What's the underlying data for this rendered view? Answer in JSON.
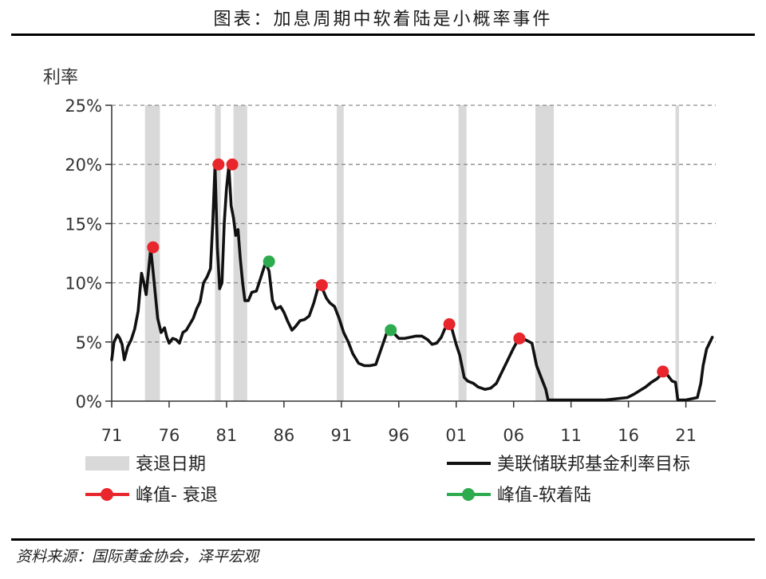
{
  "header": {
    "title": "图表：加息周期中软着陆是小概率事件"
  },
  "footer": {
    "source": "资料来源：国际黄金协会，泽平宏观"
  },
  "colors": {
    "line": "#111111",
    "recession": "#d9d9d9",
    "peak_recession": "#e8262c",
    "peak_soft": "#2eaa4f",
    "grid": "#8c8c8c"
  },
  "chart_data": {
    "type": "line",
    "title": "",
    "ylabel": "利率",
    "xlabel": "",
    "xlim": [
      1971,
      2023.6
    ],
    "ylim": [
      0,
      25
    ],
    "x_ticks": [
      1971,
      1976,
      1981,
      1986,
      1991,
      1996,
      2001,
      2006,
      2011,
      2016,
      2021
    ],
    "x_tick_labels": [
      "71",
      "76",
      "81",
      "86",
      "91",
      "96",
      "01",
      "06",
      "11",
      "16",
      "21"
    ],
    "y_ticks": [
      0,
      5,
      10,
      15,
      20,
      25
    ],
    "y_tick_labels": [
      "0%",
      "5%",
      "10%",
      "15%",
      "20%",
      "25%"
    ],
    "grid": "horizontal dashed",
    "recessions": [
      [
        1973.9,
        1975.2
      ],
      [
        1980.0,
        1980.5
      ],
      [
        1981.6,
        1982.8
      ],
      [
        1990.6,
        1991.2
      ],
      [
        2001.2,
        2001.9
      ],
      [
        2007.9,
        2009.5
      ],
      [
        2020.1,
        2020.4
      ]
    ],
    "series": [
      {
        "name": "美联储联邦基金利率目标",
        "x": [
          1971.0,
          1971.2,
          1971.5,
          1971.7,
          1971.9,
          1972.1,
          1972.4,
          1972.7,
          1973.0,
          1973.3,
          1973.6,
          1973.8,
          1974.0,
          1974.2,
          1974.4,
          1974.6,
          1974.8,
          1975.0,
          1975.3,
          1975.6,
          1975.8,
          1976.0,
          1976.3,
          1976.6,
          1976.9,
          1977.2,
          1977.5,
          1977.8,
          1978.1,
          1978.4,
          1978.7,
          1979.0,
          1979.3,
          1979.6,
          1979.8,
          1980.0,
          1980.2,
          1980.4,
          1980.6,
          1980.8,
          1981.0,
          1981.2,
          1981.4,
          1981.6,
          1981.8,
          1982.0,
          1982.2,
          1982.4,
          1982.6,
          1982.9,
          1983.2,
          1983.6,
          1984.0,
          1984.4,
          1984.7,
          1985.0,
          1985.3,
          1985.7,
          1986.0,
          1986.3,
          1986.7,
          1987.0,
          1987.4,
          1987.8,
          1988.2,
          1988.6,
          1989.0,
          1989.3,
          1989.7,
          1990.0,
          1990.4,
          1990.8,
          1991.2,
          1991.6,
          1992.0,
          1992.5,
          1993.0,
          1993.5,
          1994.0,
          1994.5,
          1995.0,
          1995.2,
          1995.6,
          1996.0,
          1996.5,
          1997.0,
          1997.5,
          1998.0,
          1998.5,
          1998.9,
          1999.3,
          1999.7,
          2000.0,
          2000.3,
          2000.6,
          2001.0,
          2001.3,
          2001.7,
          2002.0,
          2002.5,
          2002.9,
          2003.5,
          2004.0,
          2004.5,
          2005.0,
          2005.5,
          2006.0,
          2006.4,
          2007.0,
          2007.6,
          2008.0,
          2008.4,
          2008.8,
          2009.0,
          2011.0,
          2014.0,
          2015.9,
          2016.5,
          2017.0,
          2017.5,
          2018.0,
          2018.5,
          2019.0,
          2019.4,
          2019.8,
          2020.1,
          2020.3,
          2021.0,
          2022.0,
          2022.3,
          2022.5,
          2022.8,
          2023.0,
          2023.3
        ],
        "y": [
          3.5,
          5.0,
          5.6,
          5.3,
          4.8,
          3.5,
          4.6,
          5.2,
          6.1,
          7.6,
          10.8,
          10.0,
          9.0,
          11.0,
          12.9,
          11.0,
          9.0,
          7.0,
          5.8,
          6.2,
          5.4,
          4.9,
          5.3,
          5.2,
          4.9,
          5.8,
          6.0,
          6.5,
          7.0,
          7.8,
          8.4,
          10.0,
          10.5,
          11.2,
          15.0,
          19.9,
          13.0,
          9.5,
          10.0,
          15.0,
          18.0,
          19.9,
          16.5,
          15.5,
          14.0,
          14.5,
          12.0,
          10.0,
          8.5,
          8.5,
          9.2,
          9.3,
          10.5,
          11.7,
          11.0,
          8.5,
          7.8,
          8.0,
          7.5,
          6.8,
          6.0,
          6.3,
          6.8,
          6.9,
          7.2,
          8.3,
          9.7,
          9.6,
          8.7,
          8.3,
          8.0,
          7.0,
          5.8,
          5.0,
          4.0,
          3.2,
          3.0,
          3.0,
          3.1,
          4.5,
          5.9,
          6.0,
          5.7,
          5.3,
          5.3,
          5.4,
          5.5,
          5.5,
          5.2,
          4.8,
          4.9,
          5.4,
          6.1,
          6.5,
          6.2,
          4.8,
          3.9,
          2.0,
          1.7,
          1.5,
          1.2,
          1.0,
          1.1,
          1.5,
          2.5,
          3.5,
          4.5,
          5.2,
          5.2,
          4.9,
          3.0,
          2.0,
          1.0,
          0.1,
          0.1,
          0.1,
          0.3,
          0.6,
          0.9,
          1.2,
          1.6,
          1.9,
          2.4,
          2.2,
          1.7,
          1.6,
          0.1,
          0.1,
          0.3,
          1.5,
          3.0,
          4.4,
          4.8,
          5.4
        ]
      }
    ],
    "peaks_recession": [
      [
        1974.6,
        13.0
      ],
      [
        1980.3,
        20.0
      ],
      [
        1981.5,
        20.0
      ],
      [
        1989.3,
        9.8
      ],
      [
        2000.4,
        6.5
      ],
      [
        2006.5,
        5.3
      ],
      [
        2019.0,
        2.5
      ]
    ],
    "peaks_soft_landing": [
      [
        1984.7,
        11.8
      ],
      [
        1995.3,
        6.0
      ]
    ],
    "legend": [
      {
        "kind": "band",
        "label": "衰退日期"
      },
      {
        "kind": "line",
        "label": "美联储联邦基金利率目标"
      },
      {
        "kind": "dot-red",
        "label": "峰值- 衰退"
      },
      {
        "kind": "dot-green",
        "label": "峰值-软着陆"
      }
    ]
  }
}
